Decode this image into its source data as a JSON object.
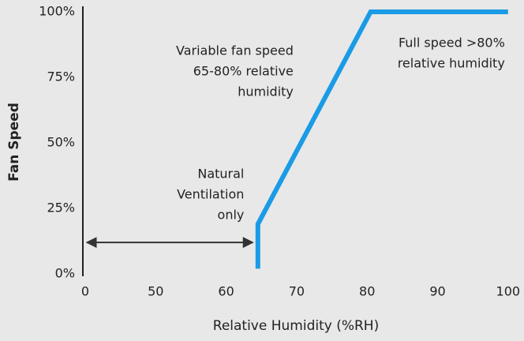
{
  "chart_data": {
    "type": "line",
    "xlabel": "Relative Humidity (%RH)",
    "ylabel": "Fan Speed",
    "x": [
      64.5,
      64.5,
      80.5,
      100
    ],
    "series": [
      {
        "name": "Fan speed",
        "color": "#1a9be6",
        "values": [
          2,
          19,
          100,
          100
        ]
      }
    ],
    "xlim": [
      0,
      100
    ],
    "xticks": [
      0,
      50,
      60,
      70,
      80,
      90,
      100
    ],
    "ylim": [
      0,
      100
    ],
    "yticks": [
      {
        "value": 0,
        "label": "0%"
      },
      {
        "value": 25,
        "label": "25%"
      },
      {
        "value": 50,
        "label": "50%"
      },
      {
        "value": 75,
        "label": "75%"
      },
      {
        "value": 100,
        "label": "100%"
      }
    ],
    "annotations": [
      {
        "lines": [
          "Variable fan speed",
          "65-80% relative",
          "humidity"
        ],
        "x": 70,
        "y": 85
      },
      {
        "lines": [
          "Full speed >80%",
          "relative humidity"
        ],
        "x": 100,
        "y": 88
      },
      {
        "lines": [
          "Natural",
          "Ventilation",
          "only"
        ],
        "x": 63,
        "y": 38
      }
    ],
    "arrow": {
      "x": [
        0,
        64
      ],
      "y": 12
    }
  }
}
